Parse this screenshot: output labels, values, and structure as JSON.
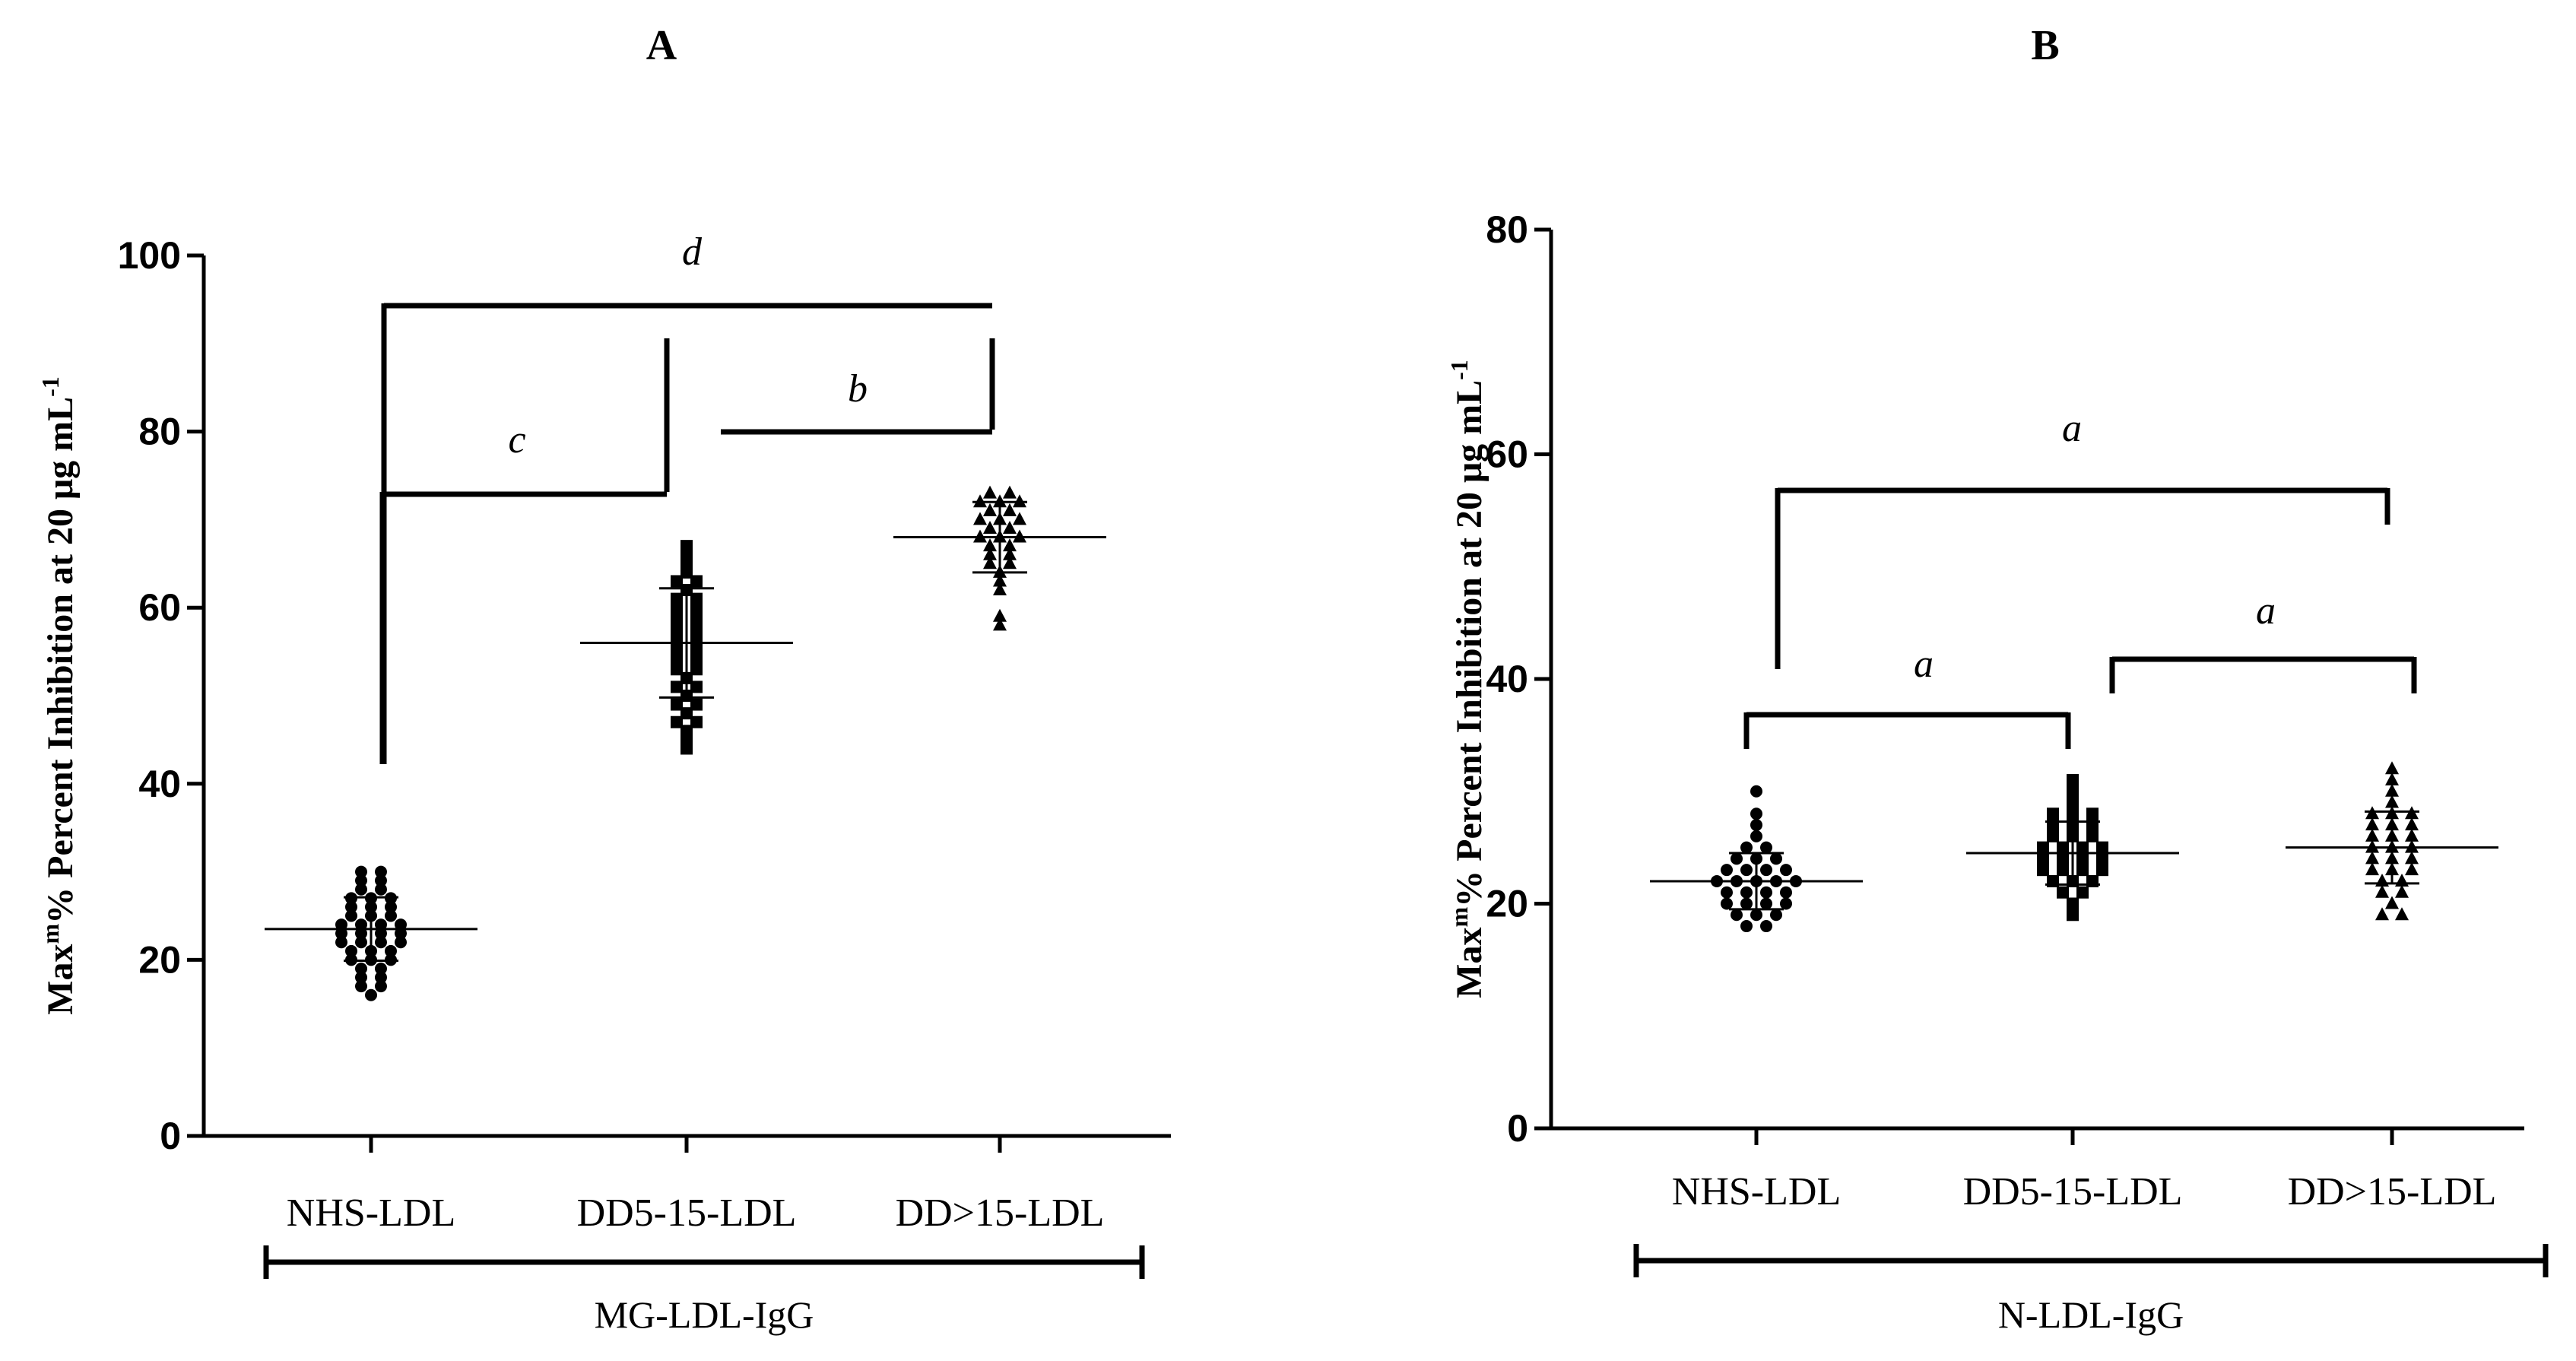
{
  "panel_labels": [
    "A",
    "B"
  ],
  "chart_data": [
    {
      "type": "scatter",
      "panel": "A",
      "ylabel_main": "Max",
      "ylabel_sup": "m",
      "ylabel_rest": "% Percent Inhibition at 20 μg mL",
      "ylabel_sup2": "-1",
      "xlabel": "MG-LDL-IgG",
      "ylim": [
        0,
        100
      ],
      "yticks": [
        0,
        20,
        40,
        60,
        80,
        100
      ],
      "ytick_labels": [
        "0",
        "20",
        "40",
        "60",
        "80",
        "100"
      ],
      "categories": [
        "NHS-LDL",
        "DD5-15-LDL",
        "DD>15-LDL"
      ],
      "markers": [
        "circle",
        "square",
        "triangle"
      ],
      "means": [
        23.5,
        56,
        68
      ],
      "sd": [
        3.6,
        6.2,
        4.0
      ],
      "series": [
        {
          "values": [
            16,
            17,
            17,
            18,
            18,
            19,
            19,
            20,
            20,
            20,
            21,
            21,
            21,
            22,
            22,
            22,
            22,
            23,
            23,
            23,
            23,
            24,
            24,
            24,
            24,
            25,
            25,
            25,
            26,
            26,
            26,
            27,
            27,
            27,
            28,
            28,
            29,
            29,
            30,
            30
          ]
        },
        {
          "values": [
            44,
            45,
            46,
            47,
            47,
            48,
            49,
            49,
            50,
            51,
            51,
            52,
            53,
            53,
            54,
            54,
            55,
            55,
            56,
            56,
            57,
            57,
            58,
            58,
            59,
            59,
            60,
            60,
            61,
            61,
            62,
            63,
            63,
            64,
            65,
            66,
            67
          ]
        },
        {
          "values": [
            58,
            59,
            62,
            63,
            64,
            65,
            65,
            66,
            66,
            67,
            67,
            68,
            68,
            68,
            69,
            69,
            70,
            70,
            70,
            71,
            71,
            72,
            72,
            72,
            73,
            73
          ]
        }
      ],
      "brackets": [
        {
          "from": 0,
          "to": 2,
          "label": "d"
        },
        {
          "from": 0,
          "to": 1,
          "label": "c"
        },
        {
          "from": 1,
          "to": 2,
          "label": "b"
        }
      ]
    },
    {
      "type": "scatter",
      "panel": "B",
      "ylabel_main": "Max",
      "ylabel_sup": "m",
      "ylabel_rest": "% Percent Inhibition at 20 μg mL",
      "ylabel_sup2": "-1",
      "xlabel": "N-LDL-IgG",
      "ylim": [
        0,
        80
      ],
      "yticks": [
        0,
        20,
        40,
        60,
        80
      ],
      "ytick_labels": [
        "0",
        "20",
        "40",
        "60",
        "80"
      ],
      "categories": [
        "NHS-LDL",
        "DD5-15-LDL",
        "DD>15-LDL"
      ],
      "markers": [
        "circle",
        "square",
        "triangle"
      ],
      "means": [
        22,
        24.5,
        25
      ],
      "sd": [
        2.5,
        2.8,
        3.2
      ],
      "series": [
        {
          "values": [
            18,
            18,
            19,
            19,
            19,
            20,
            20,
            20,
            20,
            21,
            21,
            21,
            21,
            22,
            22,
            22,
            22,
            22,
            23,
            23,
            23,
            23,
            24,
            24,
            24,
            25,
            25,
            26,
            27,
            28,
            30
          ]
        },
        {
          "values": [
            19,
            20,
            21,
            21,
            22,
            22,
            22,
            23,
            23,
            23,
            23,
            24,
            24,
            24,
            24,
            25,
            25,
            25,
            25,
            26,
            26,
            26,
            27,
            27,
            27,
            28,
            28,
            28,
            29,
            30,
            31
          ]
        },
        {
          "values": [
            19,
            19,
            20,
            21,
            21,
            22,
            22,
            23,
            23,
            23,
            24,
            24,
            24,
            25,
            25,
            25,
            26,
            26,
            26,
            27,
            27,
            27,
            28,
            28,
            28,
            29,
            30,
            31,
            32
          ]
        }
      ],
      "brackets": [
        {
          "from": 0,
          "to": 2,
          "label": "a"
        },
        {
          "from": 0,
          "to": 1,
          "label": "a"
        },
        {
          "from": 1,
          "to": 2,
          "label": "a"
        }
      ]
    }
  ]
}
